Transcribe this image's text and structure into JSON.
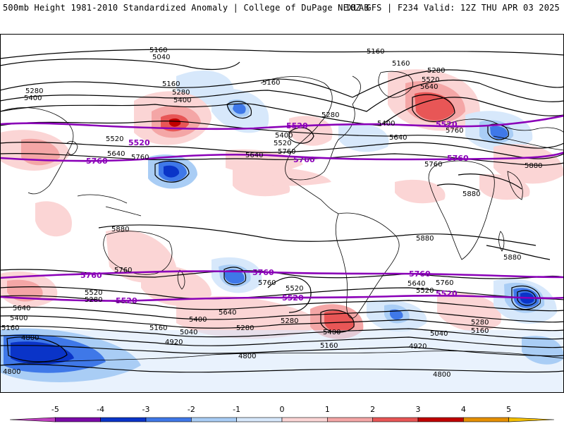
{
  "header": {
    "title_left": "500mb Height 1981-2010 Standardized Anomaly | College of DuPage NEXLAB",
    "title_right": "18Z GFS | F234 Valid: 12Z THU APR 03 2025"
  },
  "colors": {
    "neg5": "#c040c0",
    "neg4": "#7a0aa8",
    "neg3": "#0a34c8",
    "neg2": "#3f78e8",
    "neg1": "#a9cdf5",
    "neg05": "#d7e8fb",
    "pos05": "#fbd5d5",
    "pos1": "#f4a6a6",
    "pos2": "#e85656",
    "pos3": "#c00000",
    "pos4": "#e69000",
    "pos5": "#f5c000",
    "contour": "#000000",
    "reference": "#8a00b8",
    "land_outline": "#000000"
  },
  "colorbar": {
    "ticks": [
      "-5",
      "-4",
      "-3",
      "-2",
      "-1",
      "0",
      "1",
      "2",
      "3",
      "4",
      "5"
    ],
    "segments": [
      "neg5",
      "neg4",
      "neg3",
      "neg2",
      "neg1",
      "neg05",
      "pos05",
      "pos1",
      "pos2",
      "pos3",
      "pos4",
      "pos5"
    ]
  },
  "contour_labels": [
    {
      "text": "5160",
      "name": "label-5160-n-pacific"
    },
    {
      "text": "5040",
      "name": "label-5040-n-pacific"
    },
    {
      "text": "5160",
      "name": "label-5160-n-atlantic"
    },
    {
      "text": "5160",
      "name": "label-5160-n-europe"
    },
    {
      "text": "5280",
      "name": "label-5280-n-europe"
    },
    {
      "text": "5520",
      "name": "label-5520-n-europe"
    },
    {
      "text": "5640",
      "name": "label-5640-n-europe"
    },
    {
      "text": "5280",
      "name": "label-5280-n-asia"
    },
    {
      "text": "5400",
      "name": "label-5400-n-asia"
    },
    {
      "text": "5160",
      "name": "label-5160-n-pacific-b"
    },
    {
      "text": "5280",
      "name": "label-5280-n-pacific"
    },
    {
      "text": "5400",
      "name": "label-5400-n-pacific"
    },
    {
      "text": "5520",
      "name": "label-5520-n-pacific"
    },
    {
      "text": "5640",
      "name": "label-5640-n-pacific"
    },
    {
      "text": "5760",
      "name": "label-5760-n-pacific"
    },
    {
      "text": "5160",
      "name": "label-5160-n-america"
    },
    {
      "text": "5280",
      "name": "label-5280-n-america"
    },
    {
      "text": "5400",
      "name": "label-5400-n-america"
    },
    {
      "text": "5520",
      "name": "label-5520-n-america"
    },
    {
      "text": "5640",
      "name": "label-5640-n-america"
    },
    {
      "text": "5760",
      "name": "label-5760-n-america"
    },
    {
      "text": "5400",
      "name": "label-5400-n-atlantic"
    },
    {
      "text": "5640",
      "name": "label-5640-n-atlantic"
    },
    {
      "text": "5760",
      "name": "label-5760-n-africa"
    },
    {
      "text": "5760",
      "name": "label-5760-atlantic"
    },
    {
      "text": "5880",
      "name": "label-5880-asia"
    },
    {
      "text": "5880",
      "name": "label-5880-africa"
    },
    {
      "text": "5880",
      "name": "label-5880-australia"
    },
    {
      "text": "5880",
      "name": "label-5880-s-america"
    },
    {
      "text": "5880",
      "name": "label-5880-indian"
    },
    {
      "text": "5760",
      "name": "label-5760-s-australia"
    },
    {
      "text": "5520",
      "name": "label-5520-s-pacific-w"
    },
    {
      "text": "5280",
      "name": "label-5280-s-pacific-w"
    },
    {
      "text": "5640",
      "name": "label-5640-s-west"
    },
    {
      "text": "5400",
      "name": "label-5400-s-west"
    },
    {
      "text": "5160",
      "name": "label-5160-s-west"
    },
    {
      "text": "5760",
      "name": "label-5760-s-pacific"
    },
    {
      "text": "5520",
      "name": "label-5520-s-pacific"
    },
    {
      "text": "5640",
      "name": "label-5640-s-pacific"
    },
    {
      "text": "5400",
      "name": "label-5400-s-pacific"
    },
    {
      "text": "5280",
      "name": "label-5280-s-pacific"
    },
    {
      "text": "5160",
      "name": "label-5160-s-pacific"
    },
    {
      "text": "5040",
      "name": "label-5040-s-pacific"
    },
    {
      "text": "4920",
      "name": "label-4920-s-pacific"
    },
    {
      "text": "4800",
      "name": "label-4800-s-pacific"
    },
    {
      "text": "5280",
      "name": "label-5280-s-america"
    },
    {
      "text": "5400",
      "name": "label-5400-s-america"
    },
    {
      "text": "5160",
      "name": "label-5160-s-america"
    },
    {
      "text": "5640",
      "name": "label-5640-s-atlantic"
    },
    {
      "text": "5520",
      "name": "label-5520-s-atlantic"
    },
    {
      "text": "5760",
      "name": "label-5760-s-atlantic"
    },
    {
      "text": "5040",
      "name": "label-5040-s-atlantic"
    },
    {
      "text": "4920",
      "name": "label-4920-s-atlantic"
    },
    {
      "text": "4800",
      "name": "label-4800-s-indian"
    },
    {
      "text": "5280",
      "name": "label-5280-s-indian"
    },
    {
      "text": "5160",
      "name": "label-5160-s-indian"
    },
    {
      "text": "4800",
      "name": "label-4800-sw"
    },
    {
      "text": "4800",
      "name": "label-4800-w"
    },
    {
      "text": "5640",
      "name": "label-5640-far-w"
    },
    {
      "text": "5400",
      "name": "label-5400-far-w"
    },
    {
      "text": "5160",
      "name": "label-5160-far-w"
    }
  ],
  "reference_labels": [
    {
      "text": "5520",
      "name": "ref-label-5520-n-1"
    },
    {
      "text": "5520",
      "name": "ref-label-5520-n-2"
    },
    {
      "text": "5520",
      "name": "ref-label-5520-n-3"
    },
    {
      "text": "5760",
      "name": "ref-label-5760-n-1"
    },
    {
      "text": "5760",
      "name": "ref-label-5760-n-2"
    },
    {
      "text": "5760",
      "name": "ref-label-5760-n-3"
    },
    {
      "text": "5760",
      "name": "ref-label-5760-s-1"
    },
    {
      "text": "5760",
      "name": "ref-label-5760-s-2"
    },
    {
      "text": "5760",
      "name": "ref-label-5760-s-3"
    },
    {
      "text": "5520",
      "name": "ref-label-5520-s-1"
    },
    {
      "text": "5520",
      "name": "ref-label-5520-s-2"
    },
    {
      "text": "5520",
      "name": "ref-label-5520-s-3"
    }
  ]
}
